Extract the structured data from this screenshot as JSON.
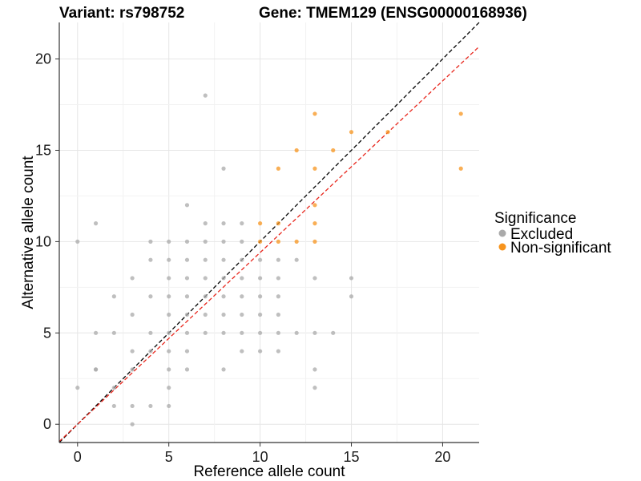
{
  "header": {
    "variant_title": "Variant: rs798752",
    "gene_title": "Gene: TMEM129 (ENSG00000168936)"
  },
  "chart_data": {
    "type": "scatter",
    "xlabel": "Reference allele count",
    "ylabel": "Alternative allele count",
    "xlim": [
      -1,
      22
    ],
    "ylim": [
      -1,
      22
    ],
    "xticks": [
      0,
      5,
      10,
      15,
      20
    ],
    "yticks": [
      0,
      5,
      10,
      15,
      20
    ],
    "grid": true,
    "legend": {
      "title": "Significance",
      "position": "right",
      "entries": [
        {
          "name": "Excluded",
          "color": "#aaaaaa"
        },
        {
          "name": "Non-significant",
          "color": "#f7941d"
        }
      ]
    },
    "reference_lines": [
      {
        "kind": "identity",
        "slope": 1,
        "intercept": 0,
        "color": "#000000",
        "style": "dashed"
      },
      {
        "kind": "fit",
        "slope": 0.94,
        "intercept": 0,
        "color": "#e8261c",
        "style": "dashed"
      }
    ],
    "series": [
      {
        "name": "Excluded",
        "color": "#aaaaaa",
        "points": [
          [
            0,
            10
          ],
          [
            0,
            2
          ],
          [
            1,
            11
          ],
          [
            1,
            5
          ],
          [
            1,
            3
          ],
          [
            1,
            3
          ],
          [
            2,
            7
          ],
          [
            2,
            5
          ],
          [
            2,
            2
          ],
          [
            2,
            1
          ],
          [
            3,
            8
          ],
          [
            3,
            6
          ],
          [
            3,
            4
          ],
          [
            3,
            3
          ],
          [
            3,
            1
          ],
          [
            3,
            0
          ],
          [
            4,
            10
          ],
          [
            4,
            9
          ],
          [
            4,
            7
          ],
          [
            4,
            5
          ],
          [
            4,
            4
          ],
          [
            4,
            1
          ],
          [
            5,
            10
          ],
          [
            5,
            9
          ],
          [
            5,
            8
          ],
          [
            5,
            7
          ],
          [
            5,
            6
          ],
          [
            5,
            5
          ],
          [
            5,
            4
          ],
          [
            5,
            3
          ],
          [
            5,
            2
          ],
          [
            5,
            1
          ],
          [
            6,
            12
          ],
          [
            6,
            10
          ],
          [
            6,
            9
          ],
          [
            6,
            8
          ],
          [
            6,
            7
          ],
          [
            6,
            6
          ],
          [
            6,
            5
          ],
          [
            6,
            4
          ],
          [
            6,
            3
          ],
          [
            7,
            18
          ],
          [
            7,
            11
          ],
          [
            7,
            10
          ],
          [
            7,
            9
          ],
          [
            7,
            8
          ],
          [
            7,
            7
          ],
          [
            7,
            6
          ],
          [
            7,
            5
          ],
          [
            8,
            14
          ],
          [
            8,
            11
          ],
          [
            8,
            10
          ],
          [
            8,
            9
          ],
          [
            8,
            8
          ],
          [
            8,
            7
          ],
          [
            8,
            6
          ],
          [
            8,
            5
          ],
          [
            8,
            3
          ],
          [
            9,
            11
          ],
          [
            9,
            10
          ],
          [
            9,
            9
          ],
          [
            9,
            8
          ],
          [
            9,
            7
          ],
          [
            9,
            6
          ],
          [
            9,
            5
          ],
          [
            9,
            4
          ],
          [
            10,
            9
          ],
          [
            10,
            8
          ],
          [
            10,
            7
          ],
          [
            10,
            6
          ],
          [
            10,
            5
          ],
          [
            10,
            4
          ],
          [
            11,
            9
          ],
          [
            11,
            8
          ],
          [
            11,
            7
          ],
          [
            11,
            6
          ],
          [
            11,
            5
          ],
          [
            11,
            4
          ],
          [
            12,
            9
          ],
          [
            12,
            5
          ],
          [
            13,
            8
          ],
          [
            13,
            5
          ],
          [
            13,
            3
          ],
          [
            13,
            2
          ],
          [
            14,
            5
          ],
          [
            15,
            8
          ],
          [
            15,
            7
          ]
        ]
      },
      {
        "name": "Non-significant",
        "color": "#f7941d",
        "points": [
          [
            10,
            11
          ],
          [
            10,
            10
          ],
          [
            11,
            11
          ],
          [
            11,
            14
          ],
          [
            11,
            10
          ],
          [
            12,
            15
          ],
          [
            12,
            10
          ],
          [
            13,
            17
          ],
          [
            13,
            14
          ],
          [
            13,
            12
          ],
          [
            13,
            11
          ],
          [
            13,
            10
          ],
          [
            14,
            15
          ],
          [
            15,
            16
          ],
          [
            17,
            16
          ],
          [
            21,
            17
          ],
          [
            21,
            14
          ]
        ]
      }
    ]
  }
}
